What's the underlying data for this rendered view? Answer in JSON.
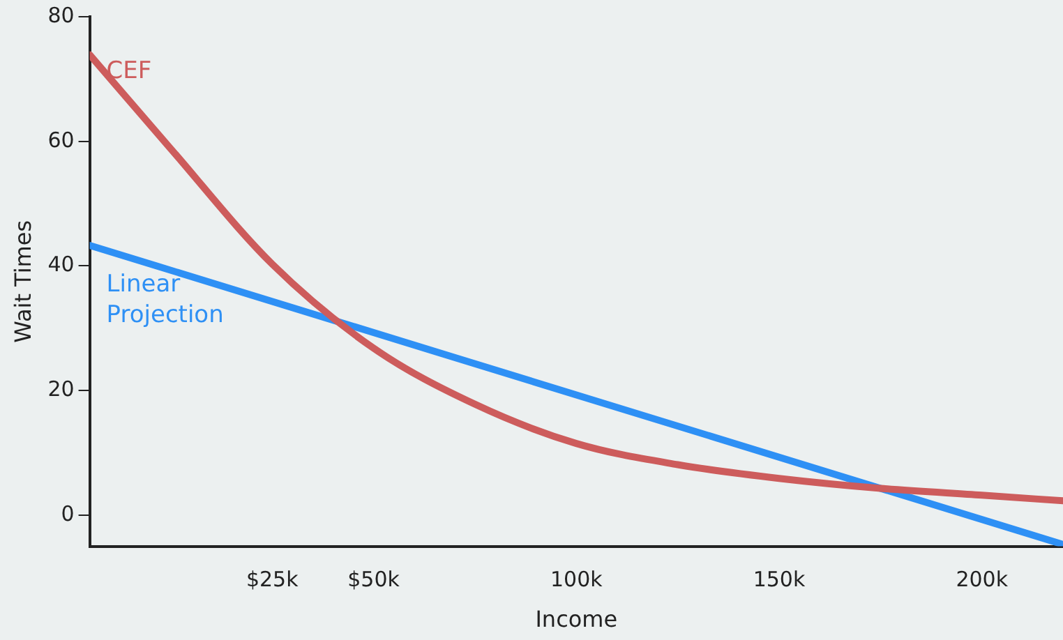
{
  "chart_data": {
    "type": "line",
    "xlabel": "Income",
    "ylabel": "Wait Times",
    "xlim": [
      -20,
      220
    ],
    "xticks": [
      {
        "value": 25,
        "label": "$25k"
      },
      {
        "value": 50,
        "label": "$50k"
      },
      {
        "value": 100,
        "label": "100k"
      },
      {
        "value": 150,
        "label": "150k"
      },
      {
        "value": 200,
        "label": "200k"
      }
    ],
    "ylim": [
      -5,
      80
    ],
    "yticks": [
      0,
      20,
      40,
      60,
      80
    ],
    "grid": false,
    "legend": false,
    "marker": "none",
    "line_style": "solid",
    "series": [
      {
        "name": "CEF",
        "color": "#cd5c5c",
        "x": [
          -20,
          0,
          25,
          50,
          75,
          100,
          125,
          150,
          175,
          200,
          220
        ],
        "values": [
          73.9,
          58.8,
          40.3,
          26.8,
          17.8,
          11.5,
          8.1,
          5.9,
          4.3,
          3.2,
          2.3
        ]
      },
      {
        "name": "Linear Projection",
        "color": "#2e90f5",
        "x": [
          -20,
          220
        ],
        "values": [
          43.3,
          -4.7
        ]
      }
    ]
  }
}
